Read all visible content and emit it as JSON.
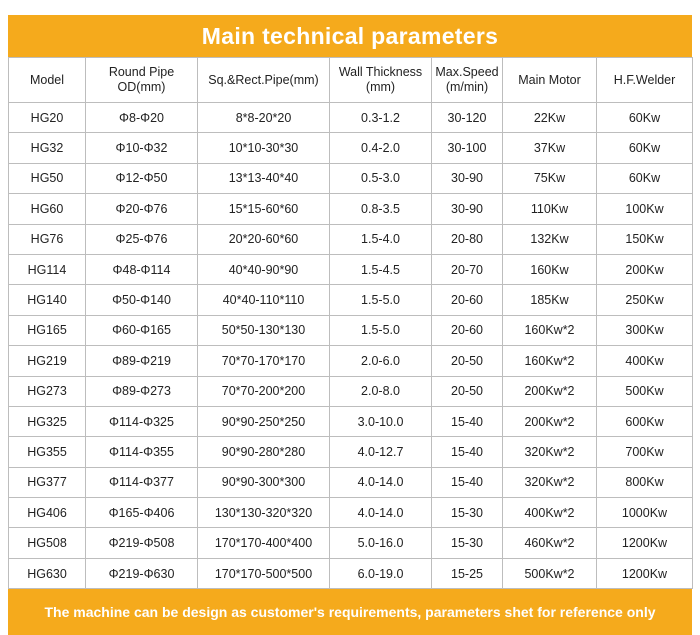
{
  "title": "Main technical parameters",
  "columns": [
    "Model",
    "Round Pipe\nOD(mm)",
    "Sq.&Rect.Pipe(mm)",
    "Wall Thickness\n(mm)",
    "Max.Speed\n(m/min)",
    "Main Motor",
    "H.F.Welder"
  ],
  "rows": [
    [
      "HG20",
      "Φ8-Φ20",
      "8*8-20*20",
      "0.3-1.2",
      "30-120",
      "22Kw",
      "60Kw"
    ],
    [
      "HG32",
      "Φ10-Φ32",
      "10*10-30*30",
      "0.4-2.0",
      "30-100",
      "37Kw",
      "60Kw"
    ],
    [
      "HG50",
      "Φ12-Φ50",
      "13*13-40*40",
      "0.5-3.0",
      "30-90",
      "75Kw",
      "60Kw"
    ],
    [
      "HG60",
      "Φ20-Φ76",
      "15*15-60*60",
      "0.8-3.5",
      "30-90",
      "110Kw",
      "100Kw"
    ],
    [
      "HG76",
      "Φ25-Φ76",
      "20*20-60*60",
      "1.5-4.0",
      "20-80",
      "132Kw",
      "150Kw"
    ],
    [
      "HG114",
      "Φ48-Φ114",
      "40*40-90*90",
      "1.5-4.5",
      "20-70",
      "160Kw",
      "200Kw"
    ],
    [
      "HG140",
      "Φ50-Φ140",
      "40*40-110*110",
      "1.5-5.0",
      "20-60",
      "185Kw",
      "250Kw"
    ],
    [
      "HG165",
      "Φ60-Φ165",
      "50*50-130*130",
      "1.5-5.0",
      "20-60",
      "160Kw*2",
      "300Kw"
    ],
    [
      "HG219",
      "Φ89-Φ219",
      "70*70-170*170",
      "2.0-6.0",
      "20-50",
      "160Kw*2",
      "400Kw"
    ],
    [
      "HG273",
      "Φ89-Φ273",
      "70*70-200*200",
      "2.0-8.0",
      "20-50",
      "200Kw*2",
      "500Kw"
    ],
    [
      "HG325",
      "Φ114-Φ325",
      "90*90-250*250",
      "3.0-10.0",
      "15-40",
      "200Kw*2",
      "600Kw"
    ],
    [
      "HG355",
      "Φ114-Φ355",
      "90*90-280*280",
      "4.0-12.7",
      "15-40",
      "320Kw*2",
      "700Kw"
    ],
    [
      "HG377",
      "Φ114-Φ377",
      "90*90-300*300",
      "4.0-14.0",
      "15-40",
      "320Kw*2",
      "800Kw"
    ],
    [
      "HG406",
      "Φ165-Φ406",
      "130*130-320*320",
      "4.0-14.0",
      "15-30",
      "400Kw*2",
      "1000Kw"
    ],
    [
      "HG508",
      "Φ219-Φ508",
      "170*170-400*400",
      "5.0-16.0",
      "15-30",
      "460Kw*2",
      "1200Kw"
    ],
    [
      "HG630",
      "Φ219-Φ630",
      "170*170-500*500",
      "6.0-19.0",
      "15-25",
      "500Kw*2",
      "1200Kw"
    ]
  ],
  "footer": "The machine can be design as customer's requirements, parameters shet for reference only",
  "colors": {
    "accent": "#f5aa1c",
    "border": "#bdbdbd"
  }
}
